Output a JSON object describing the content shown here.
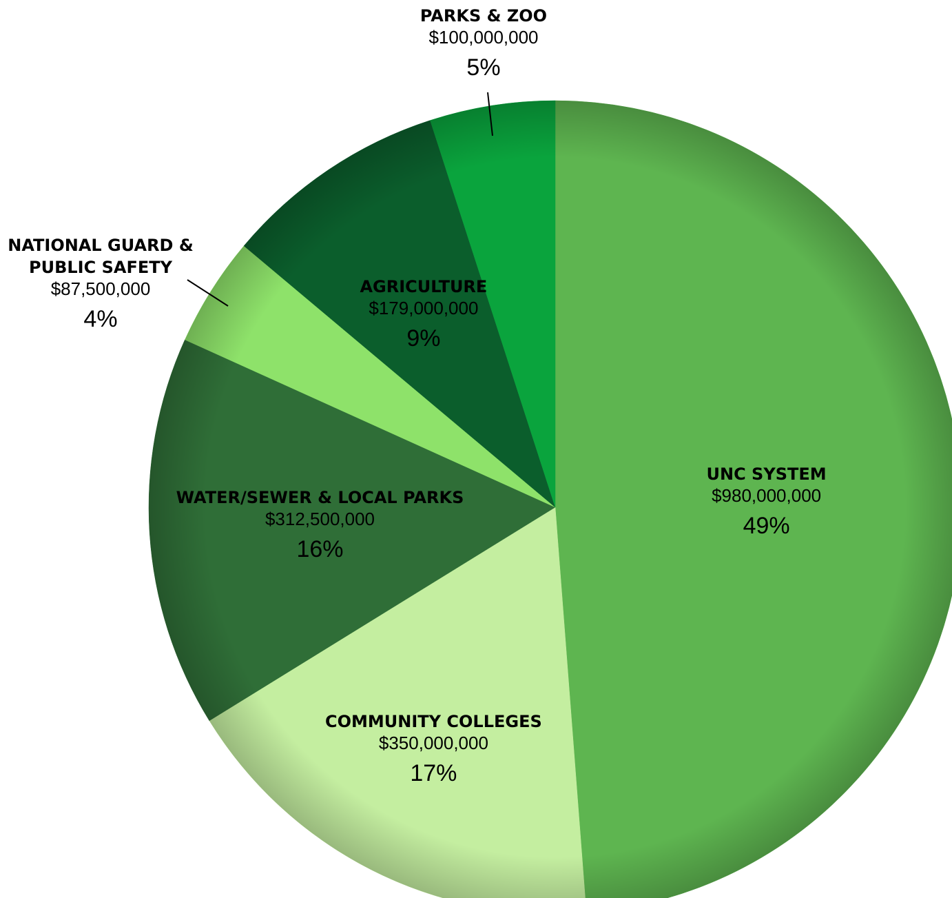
{
  "chart_data": {
    "type": "pie",
    "title": "",
    "slices": [
      {
        "label": "UNC SYSTEM",
        "amount": "$980,000,000",
        "value": 980000000,
        "percent": "49%",
        "color": "#5eb550"
      },
      {
        "label": "COMMUNITY COLLEGES",
        "amount": "$350,000,000",
        "value": 350000000,
        "percent": "17%",
        "color": "#c4eea0"
      },
      {
        "label": "WATER/SEWER & LOCAL PARKS",
        "amount": "$312,500,000",
        "value": 312500000,
        "percent": "16%",
        "color": "#2f6e37"
      },
      {
        "label": "NATIONAL GUARD & PUBLIC SAFETY",
        "amount": "$87,500,000",
        "value": 87500000,
        "percent": "4%",
        "color": "#8ee26a"
      },
      {
        "label": "AGRICULTURE",
        "amount": "$179,000,000",
        "value": 179000000,
        "percent": "9%",
        "color": "#0b5e2c"
      },
      {
        "label": "PARKS & ZOO",
        "amount": "$100,000,000",
        "value": 100000000,
        "percent": "5%",
        "color": "#0aa43d"
      }
    ],
    "start_angle": "12 o'clock",
    "direction": "clockwise",
    "legend": "none (direct labels)"
  }
}
